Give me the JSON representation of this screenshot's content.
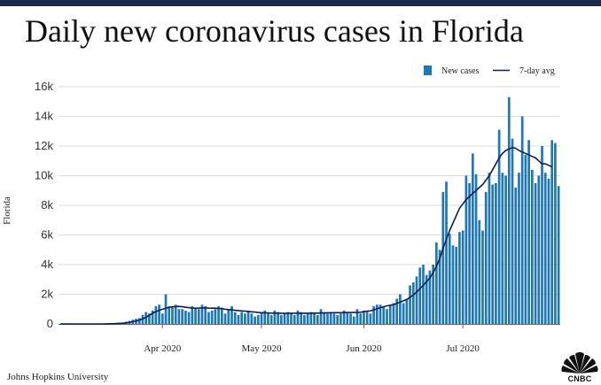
{
  "header": {
    "title": "Daily new coronavirus cases in Florida"
  },
  "footer": {
    "source": "Johns Hopkins University",
    "logo_text": "CNBC"
  },
  "colors": {
    "bar": "#1f77b4",
    "line": "#0e1e4f",
    "grid": "#dcdcdc",
    "topbar": "#1c2a4f"
  },
  "chart_data": {
    "type": "bar",
    "title": "Daily new coronavirus cases in Florida",
    "xlabel": "",
    "ylabel": "Florida",
    "ylim": [
      0,
      16000
    ],
    "y_ticks": [
      0,
      2000,
      4000,
      6000,
      8000,
      10000,
      12000,
      14000,
      16000
    ],
    "y_tick_labels": [
      "0",
      "2k",
      "4k",
      "6k",
      "8k",
      "10k",
      "12k",
      "14k",
      "16k"
    ],
    "x_tick_labels": [
      {
        "label": "Apr 2020",
        "day_index": 31
      },
      {
        "label": "May 2020",
        "day_index": 61
      },
      {
        "label": "Jun 2020",
        "day_index": 92
      },
      {
        "label": "Jul 2020",
        "day_index": 122
      }
    ],
    "legend": {
      "position": "top-right",
      "entries": [
        {
          "label": "New cases",
          "kind": "bar"
        },
        {
          "label": "7-day avg",
          "kind": "line"
        }
      ]
    },
    "start_date": "2020-03-01",
    "end_date": "2020-07-31",
    "series": [
      {
        "name": "New cases",
        "type": "bar",
        "values": [
          0,
          0,
          0,
          0,
          0,
          0,
          0,
          0,
          0,
          0,
          0,
          0,
          0,
          10,
          20,
          30,
          40,
          50,
          80,
          100,
          150,
          200,
          280,
          350,
          400,
          600,
          800,
          700,
          900,
          1200,
          1300,
          700,
          2000,
          1200,
          1100,
          1300,
          1000,
          1000,
          900,
          800,
          1200,
          1100,
          1000,
          1300,
          1200,
          800,
          900,
          1000,
          1200,
          1100,
          700,
          1000,
          1200,
          800,
          600,
          800,
          700,
          900,
          700,
          500,
          600,
          800,
          900,
          700,
          600,
          900,
          800,
          600,
          700,
          800,
          700,
          600,
          900,
          800,
          600,
          700,
          800,
          700,
          600,
          1000,
          800,
          700,
          800,
          700,
          600,
          700,
          900,
          800,
          700,
          500,
          1000,
          700,
          900,
          800,
          700,
          1200,
          1300,
          1300,
          1200,
          1000,
          1300,
          1400,
          1700,
          2000,
          1400,
          1700,
          2600,
          2800,
          3200,
          3800,
          4000,
          3300,
          3600,
          4000,
          5500,
          5000,
          8900,
          9600,
          6100,
          5300,
          5200,
          6200,
          6300,
          10000,
          9500,
          11500,
          10100,
          7000,
          6300,
          8900,
          10200,
          9400,
          9500,
          13100,
          10200,
          10000,
          15300,
          12500,
          9200,
          10200,
          14000,
          11400,
          12400,
          10400,
          9500,
          10000,
          12000,
          10200,
          9800,
          12400,
          12200,
          9300
        ]
      },
      {
        "name": "7-day avg",
        "type": "line",
        "values": [
          0,
          0,
          0,
          0,
          0,
          0,
          0,
          0,
          0,
          0,
          0,
          0,
          0,
          2,
          4,
          9,
          14,
          21,
          33,
          50,
          74,
          109,
          154,
          200,
          260,
          340,
          450,
          580,
          720,
          830,
          920,
          990,
          1060,
          1110,
          1150,
          1170,
          1180,
          1160,
          1120,
          1100,
          1070,
          1060,
          1070,
          1080,
          1080,
          1070,
          1060,
          1060,
          1040,
          1030,
          990,
          970,
          950,
          920,
          900,
          880,
          860,
          840,
          820,
          800,
          770,
          760,
          750,
          740,
          730,
          730,
          730,
          720,
          710,
          720,
          720,
          720,
          720,
          720,
          720,
          720,
          730,
          730,
          730,
          740,
          740,
          750,
          760,
          760,
          760,
          760,
          760,
          770,
          770,
          770,
          780,
          790,
          830,
          860,
          880,
          950,
          1020,
          1100,
          1160,
          1220,
          1260,
          1310,
          1380,
          1470,
          1560,
          1650,
          1800,
          1950,
          2150,
          2380,
          2600,
          2850,
          3100,
          3450,
          3900,
          4400,
          5100,
          5700,
          6300,
          6800,
          7300,
          7800,
          8100,
          8400,
          8600,
          8800,
          9000,
          9200,
          9400,
          9700,
          10000,
          10400,
          10800,
          11200,
          11500,
          11700,
          11800,
          11900,
          11850,
          11700,
          11600,
          11500,
          11400,
          11300,
          11200,
          11000,
          10800,
          10800,
          10700,
          10600
        ]
      }
    ]
  }
}
